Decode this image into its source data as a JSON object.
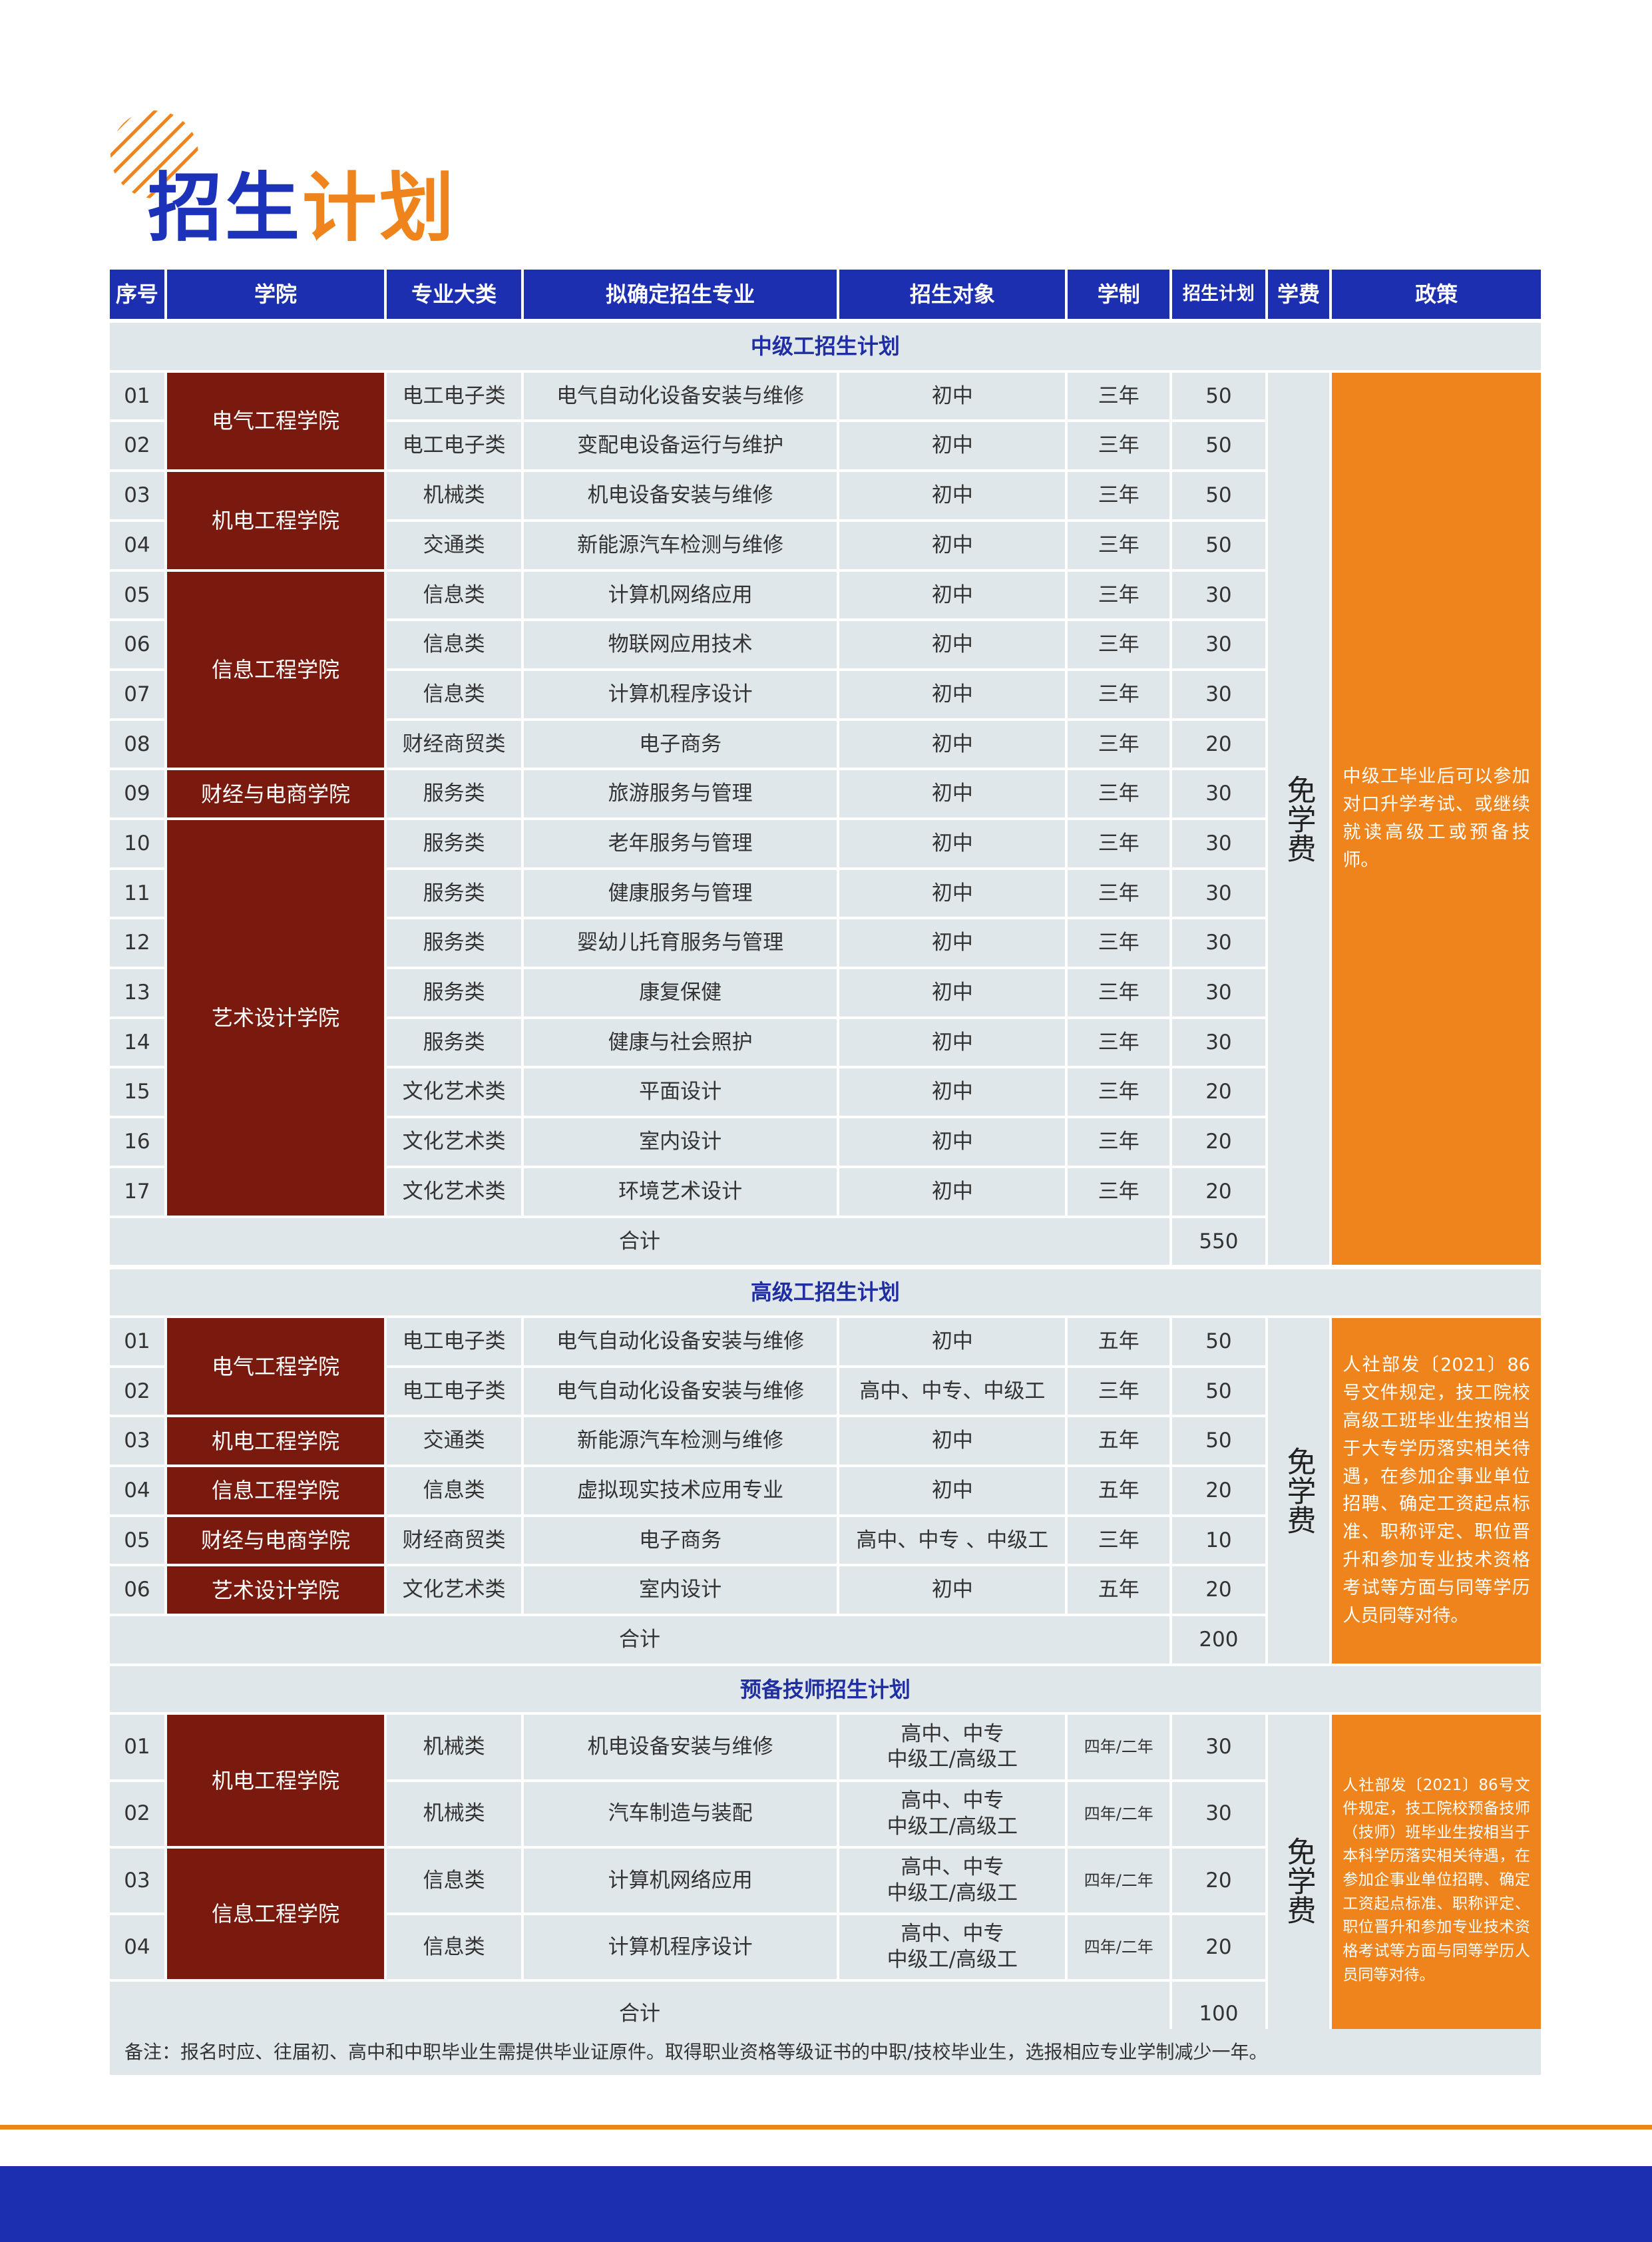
{
  "header": {
    "title_part1": "招生",
    "title_part2": "计划"
  },
  "table": {
    "columns": [
      "序号",
      "学院",
      "专业大类",
      "拟确定招生专业",
      "招生对象",
      "学制",
      "招生计划",
      "学费",
      "政策"
    ],
    "sections": [
      {
        "title": "中级工招生计划",
        "colleges": [
          {
            "name": "电气工程学院",
            "rows": [
              {
                "no": "01",
                "category": "电工电子类",
                "major": "电气自动化设备安装与维修",
                "target": [
                  "初中"
                ],
                "duration": "三年",
                "plan": 50
              },
              {
                "no": "02",
                "category": "电工电子类",
                "major": "变配电设备运行与维护",
                "target": [
                  "初中"
                ],
                "duration": "三年",
                "plan": 50
              }
            ]
          },
          {
            "name": "机电工程学院",
            "rows": [
              {
                "no": "03",
                "category": "机械类",
                "major": "机电设备安装与维修",
                "target": [
                  "初中"
                ],
                "duration": "三年",
                "plan": 50
              },
              {
                "no": "04",
                "category": "交通类",
                "major": "新能源汽车检测与维修",
                "target": [
                  "初中"
                ],
                "duration": "三年",
                "plan": 50
              }
            ]
          },
          {
            "name": "信息工程学院",
            "rows": [
              {
                "no": "05",
                "category": "信息类",
                "major": "计算机网络应用",
                "target": [
                  "初中"
                ],
                "duration": "三年",
                "plan": 30
              },
              {
                "no": "06",
                "category": "信息类",
                "major": "物联网应用技术",
                "target": [
                  "初中"
                ],
                "duration": "三年",
                "plan": 30
              },
              {
                "no": "07",
                "category": "信息类",
                "major": "计算机程序设计",
                "target": [
                  "初中"
                ],
                "duration": "三年",
                "plan": 30
              },
              {
                "no": "08",
                "category": "财经商贸类",
                "major": "电子商务",
                "target": [
                  "初中"
                ],
                "duration": "三年",
                "plan": 20
              }
            ]
          },
          {
            "name": "财经与电商学院",
            "rows": [
              {
                "no": "09",
                "category": "服务类",
                "major": "旅游服务与管理",
                "target": [
                  "初中"
                ],
                "duration": "三年",
                "plan": 30
              }
            ]
          },
          {
            "name": "艺术设计学院",
            "rows": [
              {
                "no": "10",
                "category": "服务类",
                "major": "老年服务与管理",
                "target": [
                  "初中"
                ],
                "duration": "三年",
                "plan": 30
              },
              {
                "no": "11",
                "category": "服务类",
                "major": "健康服务与管理",
                "target": [
                  "初中"
                ],
                "duration": "三年",
                "plan": 30
              },
              {
                "no": "12",
                "category": "服务类",
                "major": "婴幼儿托育服务与管理",
                "target": [
                  "初中"
                ],
                "duration": "三年",
                "plan": 30
              },
              {
                "no": "13",
                "category": "服务类",
                "major": "康复保健",
                "target": [
                  "初中"
                ],
                "duration": "三年",
                "plan": 30
              },
              {
                "no": "14",
                "category": "服务类",
                "major": "健康与社会照护",
                "target": [
                  "初中"
                ],
                "duration": "三年",
                "plan": 30
              },
              {
                "no": "15",
                "category": "文化艺术类",
                "major": "平面设计",
                "target": [
                  "初中"
                ],
                "duration": "三年",
                "plan": 20
              },
              {
                "no": "16",
                "category": "文化艺术类",
                "major": "室内设计",
                "target": [
                  "初中"
                ],
                "duration": "三年",
                "plan": 20
              },
              {
                "no": "17",
                "category": "文化艺术类",
                "major": "环境艺术设计",
                "target": [
                  "初中"
                ],
                "duration": "三年",
                "plan": 20
              }
            ]
          }
        ],
        "total_label": "合计",
        "total": 550,
        "fee": "免学费",
        "policy": "中级工毕业后可以参加对口升学考试、或继续就读高级工或预备技师。"
      },
      {
        "title": "高级工招生计划",
        "colleges": [
          {
            "name": "电气工程学院",
            "rows": [
              {
                "no": "01",
                "category": "电工电子类",
                "major": "电气自动化设备安装与维修",
                "target": [
                  "初中"
                ],
                "duration": "五年",
                "plan": 50
              },
              {
                "no": "02",
                "category": "电工电子类",
                "major": "电气自动化设备安装与维修",
                "target": [
                  "高中、中专、中级工"
                ],
                "duration": "三年",
                "plan": 50
              }
            ]
          },
          {
            "name": "机电工程学院",
            "rows": [
              {
                "no": "03",
                "category": "交通类",
                "major": "新能源汽车检测与维修",
                "target": [
                  "初中"
                ],
                "duration": "五年",
                "plan": 50
              }
            ]
          },
          {
            "name": "信息工程学院",
            "rows": [
              {
                "no": "04",
                "category": "信息类",
                "major": "虚拟现实技术应用专业",
                "target": [
                  "初中"
                ],
                "duration": "五年",
                "plan": 20
              }
            ]
          },
          {
            "name": "财经与电商学院",
            "rows": [
              {
                "no": "05",
                "category": "财经商贸类",
                "major": "电子商务",
                "target": [
                  "高中、中专 、中级工"
                ],
                "duration": "三年",
                "plan": 10
              }
            ]
          },
          {
            "name": "艺术设计学院",
            "rows": [
              {
                "no": "06",
                "category": "文化艺术类",
                "major": "室内设计",
                "target": [
                  "初中"
                ],
                "duration": "五年",
                "plan": 20
              }
            ]
          }
        ],
        "total_label": "合计",
        "total": 200,
        "fee": "免学费",
        "policy": "人社部发〔2021〕86号文件规定，技工院校高级工班毕业生按相当于大专学历落实相关待遇，在参加企事业单位招聘、确定工资起点标准、职称评定、职位晋升和参加专业技术资格考试等方面与同等学历人员同等对待。"
      },
      {
        "title": "预备技师招生计划",
        "colleges": [
          {
            "name": "机电工程学院",
            "rows": [
              {
                "no": "01",
                "category": "机械类",
                "major": "机电设备安装与维修",
                "target": [
                  "高中、中专",
                  "中级工/高级工"
                ],
                "duration": "四年/二年",
                "plan": 30
              },
              {
                "no": "02",
                "category": "机械类",
                "major": "汽车制造与装配",
                "target": [
                  "高中、中专",
                  "中级工/高级工"
                ],
                "duration": "四年/二年",
                "plan": 30
              }
            ]
          },
          {
            "name": "信息工程学院",
            "rows": [
              {
                "no": "03",
                "category": "信息类",
                "major": "计算机网络应用",
                "target": [
                  "高中、中专",
                  "中级工/高级工"
                ],
                "duration": "四年/二年",
                "plan": 20
              },
              {
                "no": "04",
                "category": "信息类",
                "major": "计算机程序设计",
                "target": [
                  "高中、中专",
                  "中级工/高级工"
                ],
                "duration": "四年/二年",
                "plan": 20
              }
            ]
          }
        ],
        "total_label": "合计",
        "total": 100,
        "fee": "免学费",
        "policy": "人社部发〔2021〕86号文件规定，技工院校预备技师（技师）班毕业生按相当于本科学历落实相关待遇，在参加企事业单位招聘、确定工资起点标准、职称评定、职位晋升和参加专业技术资格考试等方面与同等学历人员同等对待。"
      }
    ],
    "note": "备注：报名时应、往届初、高中和中职毕业生需提供毕业证原件。取得职业资格等级证书的中职/技校毕业生，选报相应专业学制减少一年。"
  }
}
